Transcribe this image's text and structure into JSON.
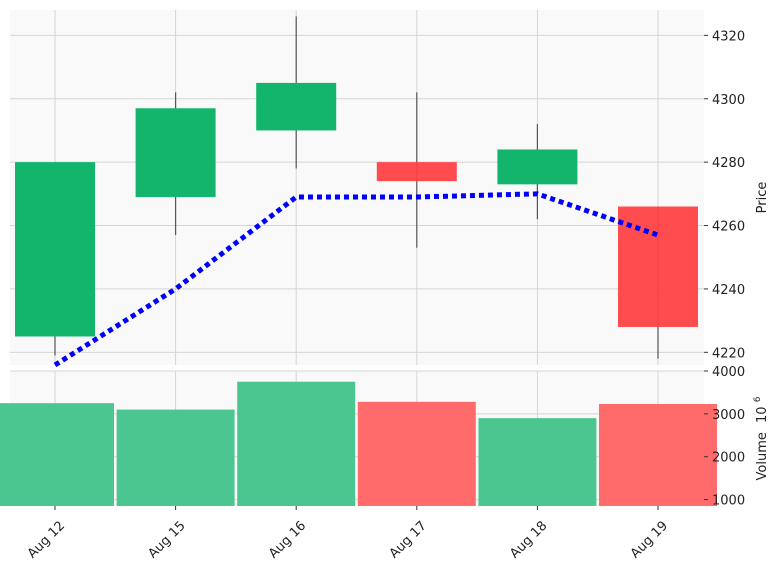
{
  "chart_data": {
    "type": "candlestick",
    "categories": [
      "Aug 12",
      "Aug 15",
      "Aug 16",
      "Aug 17",
      "Aug 18",
      "Aug 19"
    ],
    "candles": [
      {
        "date": "Aug 12",
        "open": 4225,
        "high": 4280,
        "low": 4219,
        "close": 4280,
        "direction": "up"
      },
      {
        "date": "Aug 15",
        "open": 4269,
        "high": 4302,
        "low": 4257,
        "close": 4297,
        "direction": "up"
      },
      {
        "date": "Aug 16",
        "open": 4290,
        "high": 4326,
        "low": 4278,
        "close": 4305,
        "direction": "up"
      },
      {
        "date": "Aug 17",
        "open": 4280,
        "high": 4302,
        "low": 4253,
        "close": 4274,
        "direction": "down"
      },
      {
        "date": "Aug 18",
        "open": 4273,
        "high": 4292,
        "low": 4262,
        "close": 4284,
        "direction": "up"
      },
      {
        "date": "Aug 19",
        "open": 4266,
        "high": 4266,
        "low": 4218,
        "close": 4228,
        "direction": "down"
      }
    ],
    "moving_average": {
      "style": "dotted",
      "color": "#0000ff",
      "values": [
        4216,
        4240,
        4269,
        4269,
        4270,
        4257
      ]
    },
    "volume": {
      "values": [
        3250,
        3100,
        3750,
        3280,
        2900,
        3230
      ],
      "unit_exponent": "6"
    },
    "price_axis": {
      "label": "Price",
      "ticks": [
        "4220",
        "4240",
        "4260",
        "4280",
        "4300",
        "4320"
      ],
      "ylim": [
        4216,
        4328
      ]
    },
    "volume_axis": {
      "label": "Volume",
      "exponent_base": "10",
      "ticks": [
        "1000",
        "2000",
        "3000",
        "4000"
      ],
      "ylim": [
        850,
        4000
      ]
    },
    "grid": true,
    "colors": {
      "up": "#13b56d",
      "down": "#ff4245",
      "up_volume": "#4cc690",
      "down_volume": "#ff6b6b",
      "wick": "#555555",
      "panel_bg": "#f9f9f9",
      "grid": "#d5d5d5"
    }
  }
}
